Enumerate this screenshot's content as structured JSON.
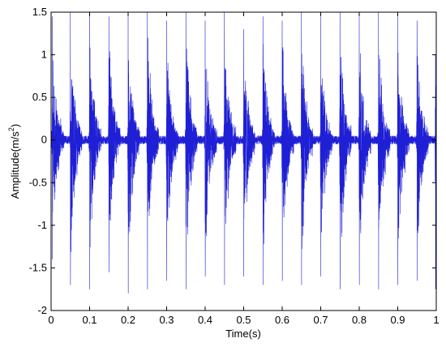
{
  "chart_data": {
    "type": "line",
    "title": "",
    "xlabel": "Time(s)",
    "ylabel": "Amplitude(m/s",
    "ylabel_sup": "2",
    "ylabel_suffix": ")",
    "xlim": [
      0,
      1
    ],
    "ylim": [
      -2,
      1.5
    ],
    "xticks": [
      0,
      0.1,
      0.2,
      0.3,
      0.4,
      0.5,
      0.6,
      0.7,
      0.8,
      0.9,
      1
    ],
    "xtick_labels": [
      "0",
      "0.1",
      "0.2",
      "0.3",
      "0.4",
      "0.5",
      "0.6",
      "0.7",
      "0.8",
      "0.9",
      "1"
    ],
    "yticks": [
      -2,
      -1.5,
      -1,
      -0.5,
      0,
      0.5,
      1,
      1.5
    ],
    "ytick_labels": [
      "-2",
      "-1.5",
      "-1",
      "-0.5",
      "0",
      "0.5",
      "1",
      "1.5"
    ],
    "grid": false,
    "line_color": "#1f1fd6",
    "series": [
      {
        "impact_times": [
          0.003,
          0.05,
          0.1,
          0.15,
          0.2,
          0.25,
          0.3,
          0.35,
          0.4,
          0.45,
          0.5,
          0.55,
          0.6,
          0.65,
          0.7,
          0.75,
          0.8,
          0.85,
          0.9,
          0.95,
          0.998
        ],
        "impact_peaks_pos": [
          1.45,
          1.5,
          1.5,
          1.45,
          1.5,
          1.5,
          1.4,
          1.5,
          1.4,
          1.5,
          1.3,
          1.45,
          1.4,
          1.5,
          1.45,
          1.5,
          1.45,
          1.5,
          1.45,
          1.4,
          1.0
        ],
        "impact_peaks_neg": [
          -1.4,
          -1.7,
          -1.75,
          -1.55,
          -1.8,
          -1.75,
          -1.65,
          -1.75,
          -1.6,
          -1.7,
          -1.6,
          -1.7,
          -1.65,
          -1.7,
          -1.6,
          -1.75,
          -1.7,
          -1.75,
          -1.7,
          -1.65,
          -1.75
        ],
        "background_noise_amplitude": 0.05,
        "ringing_decay_time": 0.012
      }
    ]
  }
}
